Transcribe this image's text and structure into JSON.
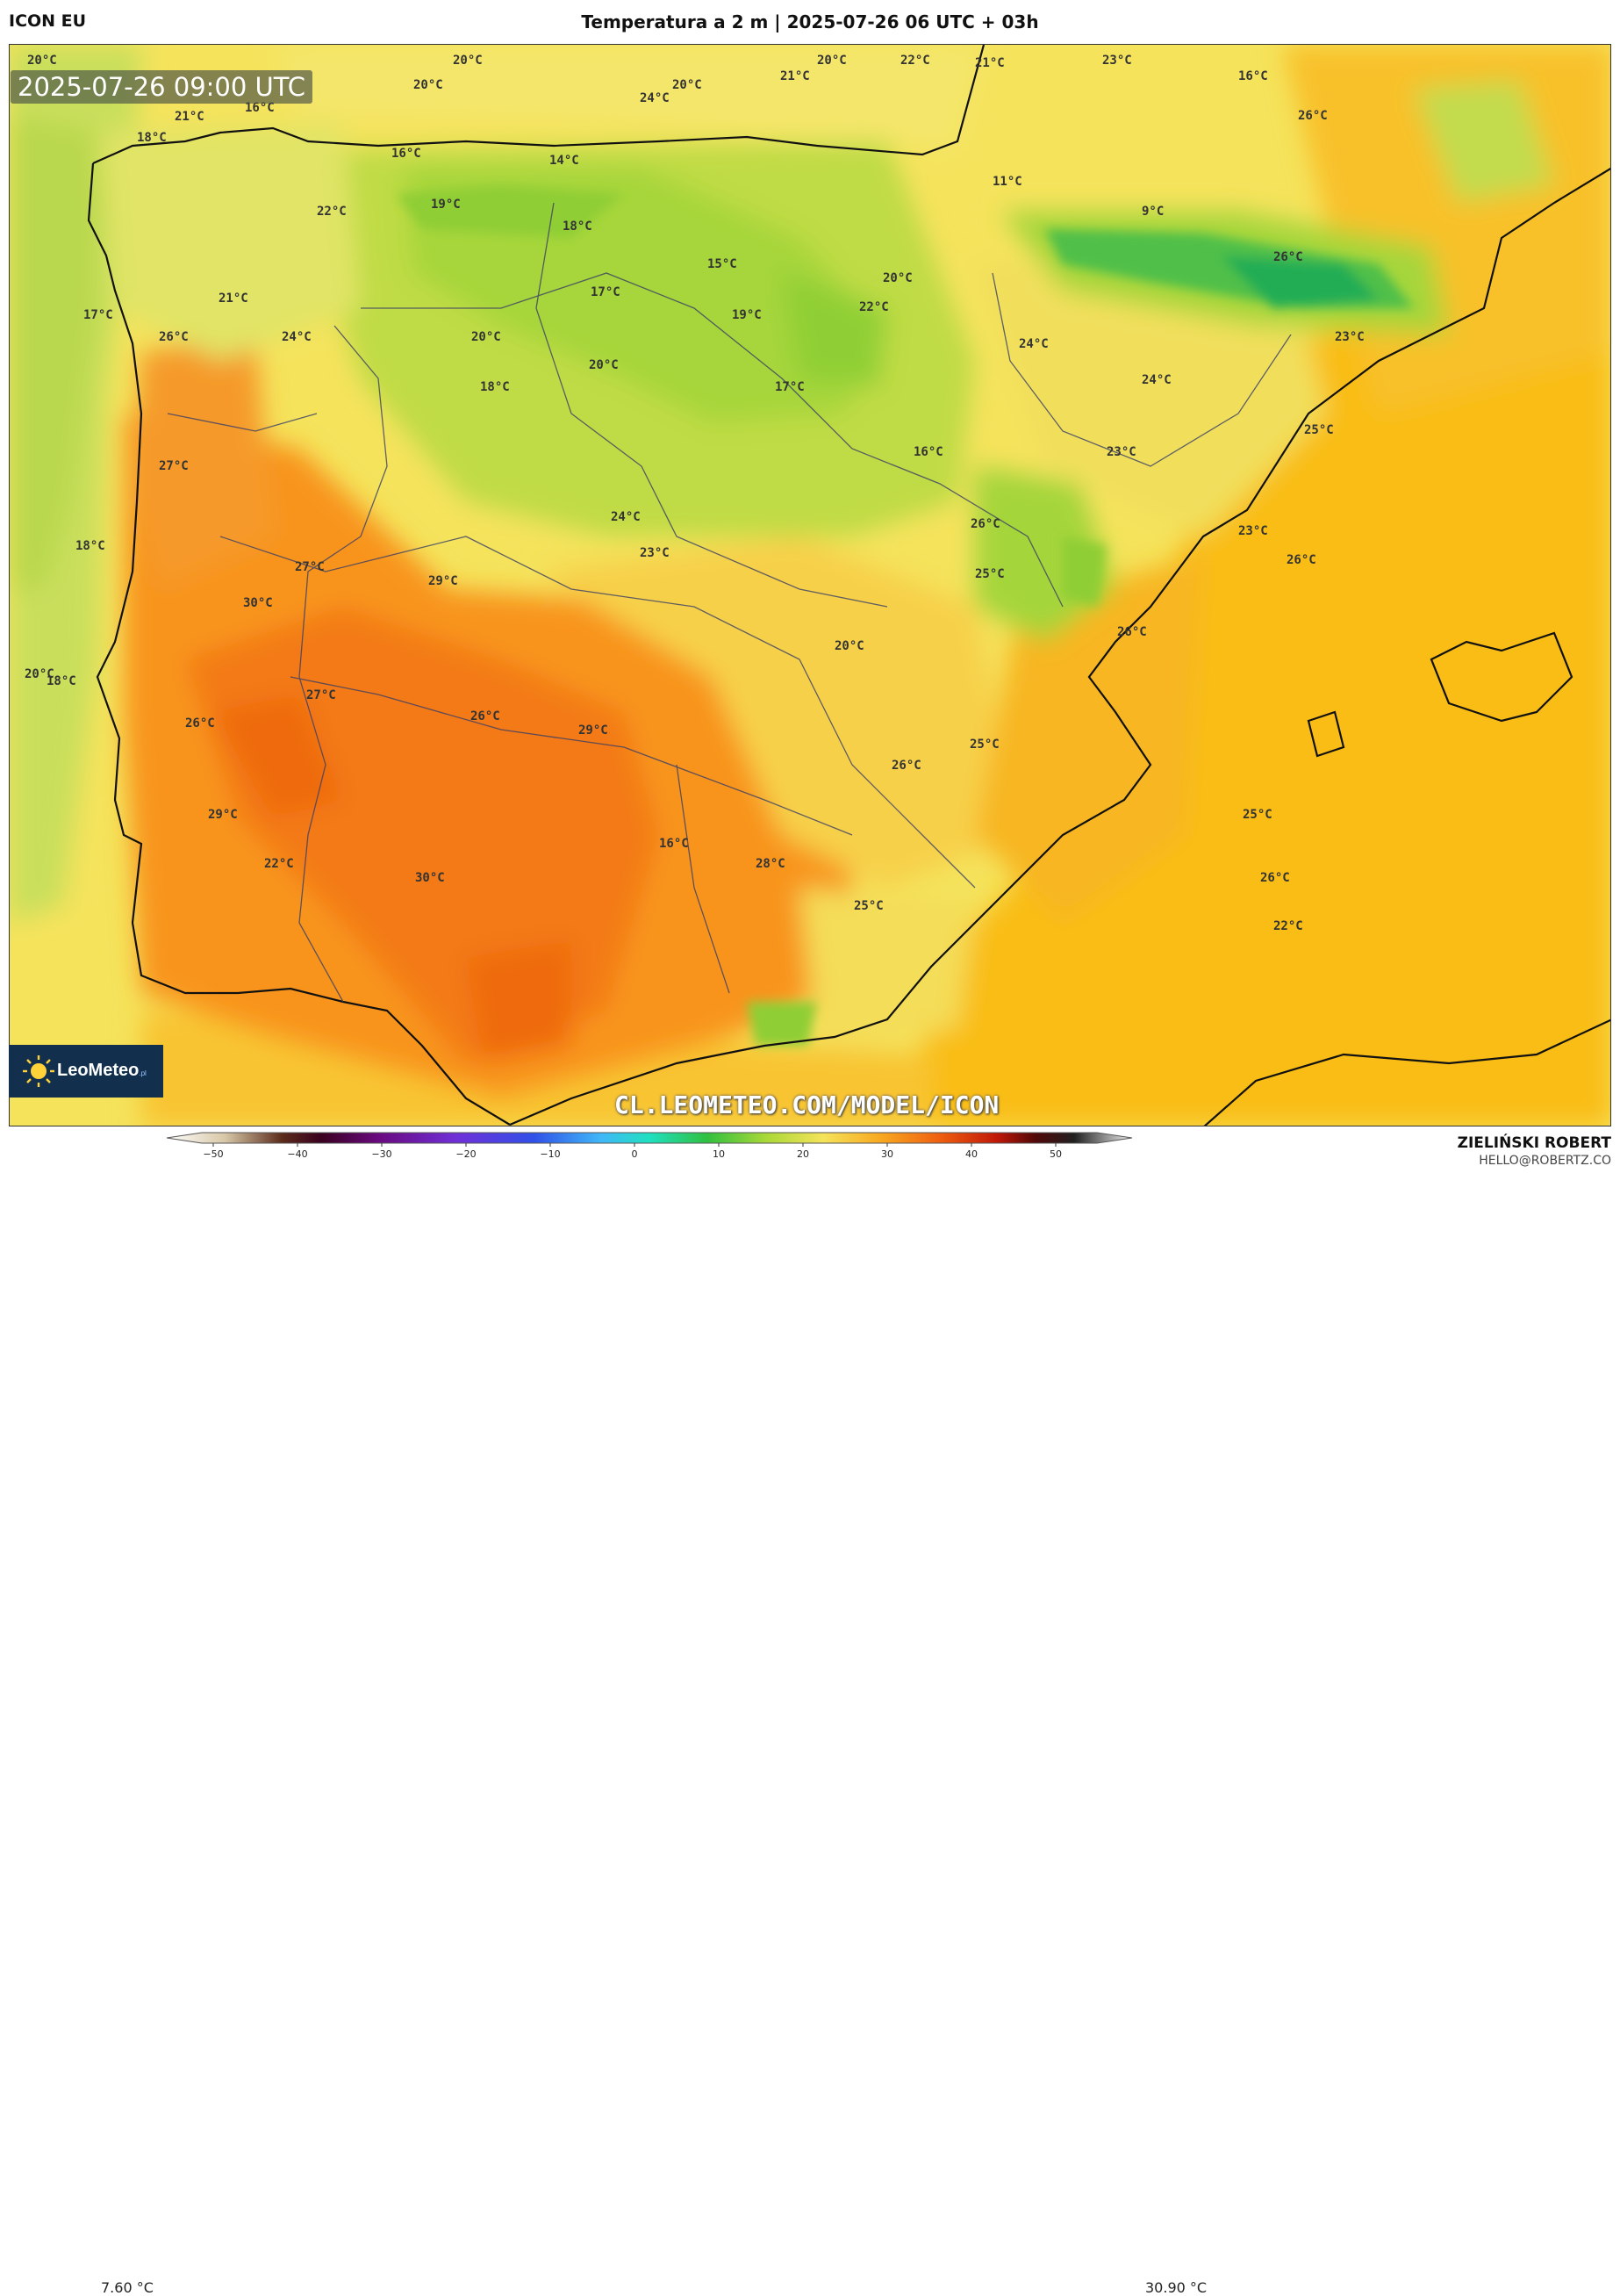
{
  "header": {
    "model": "ICON EU",
    "title": "Temperatura a 2 m | 2025-07-26 06 UTC + 03h"
  },
  "map": {
    "valid_time": "2025-07-26 09:00 UTC",
    "watermark_url": "CL.LEOMETEO.COM/MODEL/ICON",
    "logo": "LeoMeteo",
    "logo_suffix": ".pl",
    "temperature_labels": [
      "20°C",
      "20°C",
      "20°C",
      "20°C",
      "21°C",
      "20°C",
      "22°C",
      "21°C",
      "23°C",
      "16°C",
      "21°C",
      "16°C",
      "24°C",
      "18°C",
      "26°C",
      "16°C",
      "14°C",
      "11°C",
      "9°C",
      "19°C",
      "22°C",
      "18°C",
      "15°C",
      "26°C",
      "17°C",
      "21°C",
      "17°C",
      "20°C",
      "22°C",
      "19°C",
      "26°C",
      "24°C",
      "20°C",
      "24°C",
      "23°C",
      "20°C",
      "18°C",
      "17°C",
      "24°C",
      "25°C",
      "27°C",
      "16°C",
      "23°C",
      "24°C",
      "26°C",
      "18°C",
      "23°C",
      "23°C",
      "27°C",
      "29°C",
      "25°C",
      "26°C",
      "30°C",
      "26°C",
      "20°C",
      "20°C",
      "18°C",
      "27°C",
      "26°C",
      "26°C",
      "29°C",
      "25°C",
      "26°C",
      "25°C",
      "29°C",
      "16°C",
      "28°C",
      "22°C",
      "30°C",
      "26°C",
      "25°C",
      "22°C"
    ]
  },
  "colorbar": {
    "min_value": "7.60 °C",
    "max_value": "30.90 °C",
    "ticks": [
      "−50",
      "−40",
      "−30",
      "−20",
      "−10",
      "0",
      "10",
      "20",
      "30",
      "40",
      "50"
    ]
  },
  "footer": {
    "author": "ZIELIŃSKI ROBERT",
    "email": "HELLO@ROBERTZ.CO"
  },
  "colors": {
    "cold_green": "#29b34a",
    "cool_green": "#a9d93e",
    "mild_yellow": "#f5e45a",
    "warm_amber": "#fbbd10",
    "hot_orange": "#f7921e",
    "very_hot": "#f06c10",
    "sea_east": "#f9be16",
    "atlantic": "#cfe162"
  }
}
